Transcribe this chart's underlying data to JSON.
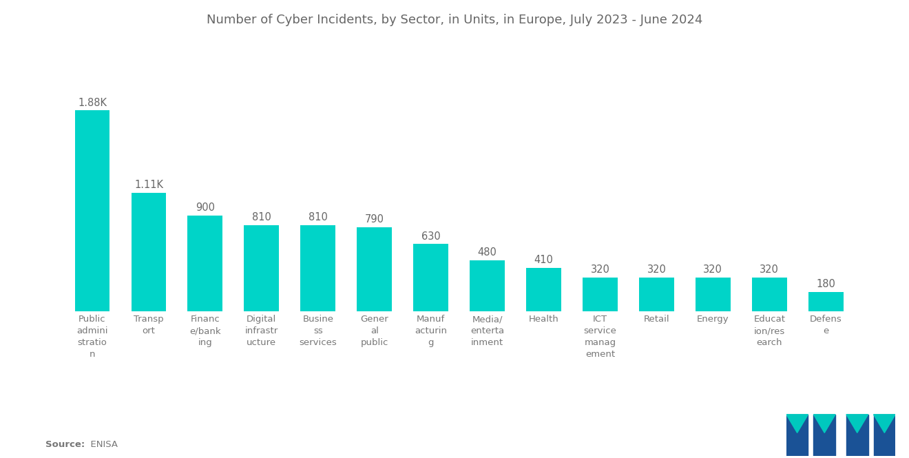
{
  "title": "Number of Cyber Incidents, by Sector, in Units, in Europe, July 2023 - June 2024",
  "categories": [
    "Public\nadmini\nstratio\nn",
    "Transp\nort",
    "Financ\ne/bank\ning",
    "Digital\ninfrastr\nucture",
    "Busine\nss\nservices",
    "Gener\nal\npublic",
    "Manuf\nacturin\ng",
    "Media/\nenterta\ninment",
    "Health",
    "ICT\nservice\nmanag\nement",
    "Retail",
    "Energy",
    "Educat\nion/res\nearch",
    "Defens\ne"
  ],
  "values": [
    1880,
    1110,
    900,
    810,
    810,
    790,
    630,
    480,
    410,
    320,
    320,
    320,
    320,
    180
  ],
  "value_labels": [
    "1.88K",
    "1.11K",
    "900",
    "810",
    "810",
    "790",
    "630",
    "480",
    "410",
    "320",
    "320",
    "320",
    "320",
    "180"
  ],
  "bar_color": "#00D4C8",
  "background_color": "#ffffff",
  "title_color": "#666666",
  "label_color": "#777777",
  "value_label_color": "#666666",
  "source_bold": "Source:",
  "source_normal": "  ENISA",
  "ylim": [
    0,
    2400
  ]
}
